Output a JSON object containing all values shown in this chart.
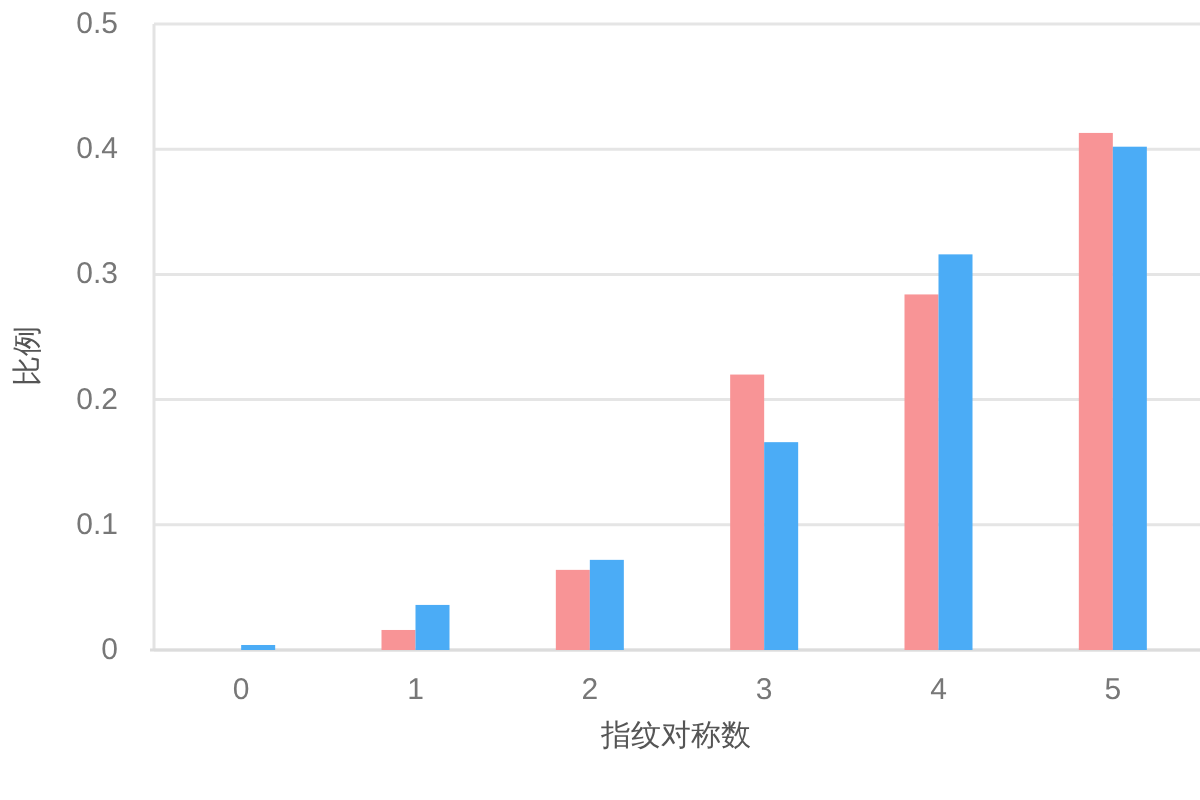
{
  "chart_data": {
    "type": "bar",
    "xlabel": "指纹对称数",
    "ylabel": "比例",
    "categories": [
      "0",
      "1",
      "2",
      "3",
      "4",
      "5"
    ],
    "series": [
      {
        "color": "#f89496",
        "values": [
          0,
          0.016,
          0.064,
          0.22,
          0.284,
          0.413
        ]
      },
      {
        "color": "#4bacf6",
        "values": [
          0.004,
          0.036,
          0.072,
          0.166,
          0.316,
          0.402
        ]
      }
    ],
    "ylim": [
      0,
      0.5
    ],
    "yticks": [
      0,
      0.1,
      0.2,
      0.3,
      0.4,
      0.5
    ],
    "grid": "y"
  }
}
